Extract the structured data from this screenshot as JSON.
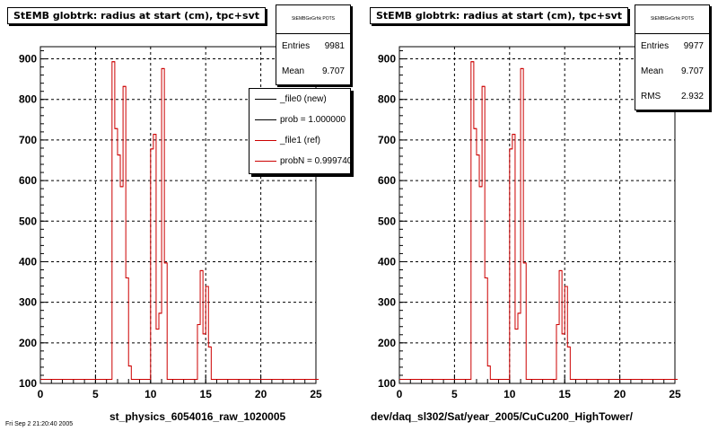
{
  "footer": {
    "timestamp": "Fri Sep  2 21:20:40 2005"
  },
  "legend": {
    "entries": [
      {
        "label": "_file0 (new)",
        "color": "#000000"
      },
      {
        "label": "prob = 1.000000",
        "color": "#000000"
      },
      {
        "label": "_file1 (ref)",
        "color": "#cc0000"
      },
      {
        "label": "probN = 0.999740",
        "color": "#cc0000"
      }
    ]
  },
  "colors": {
    "hist": "#cc0000",
    "grid": "#000000",
    "background": "#ffffff"
  },
  "chart_data": [
    {
      "type": "bar",
      "title": "StEMB globtrk: radius at start (cm), tpc+svt",
      "xlabel": "st_physics_6054016_raw_1020005",
      "ylabel": "",
      "xlim": [
        0,
        25
      ],
      "ylim": [
        100,
        930
      ],
      "xticks": [
        "0",
        "5",
        "10",
        "15",
        "20",
        "25"
      ],
      "yticks": [
        "100",
        "200",
        "300",
        "400",
        "500",
        "600",
        "700",
        "800",
        "900"
      ],
      "grid": true,
      "stats": {
        "name": "StEMBGeGrhk POTS",
        "entries_label": "Entries",
        "entries": "9981",
        "mean_label": "Mean",
        "mean": "9.707"
      },
      "bin_width": 0.25,
      "bins": [
        {
          "x": 0.0,
          "y": 110
        },
        {
          "x": 6.25,
          "y": 110
        },
        {
          "x": 6.5,
          "y": 893
        },
        {
          "x": 6.75,
          "y": 728
        },
        {
          "x": 7.0,
          "y": 663
        },
        {
          "x": 7.25,
          "y": 585
        },
        {
          "x": 7.5,
          "y": 832
        },
        {
          "x": 7.75,
          "y": 360
        },
        {
          "x": 8.0,
          "y": 143
        },
        {
          "x": 8.25,
          "y": 110
        },
        {
          "x": 10.0,
          "y": 678
        },
        {
          "x": 10.25,
          "y": 714
        },
        {
          "x": 10.5,
          "y": 234
        },
        {
          "x": 10.75,
          "y": 273
        },
        {
          "x": 11.0,
          "y": 876
        },
        {
          "x": 11.25,
          "y": 397
        },
        {
          "x": 11.5,
          "y": 110
        },
        {
          "x": 14.25,
          "y": 245
        },
        {
          "x": 14.5,
          "y": 378
        },
        {
          "x": 14.75,
          "y": 222
        },
        {
          "x": 15.0,
          "y": 339
        },
        {
          "x": 15.25,
          "y": 190
        },
        {
          "x": 15.5,
          "y": 110
        },
        {
          "x": 25.0,
          "y": 110
        }
      ]
    },
    {
      "type": "bar",
      "title": "StEMB globtrk: radius at start (cm), tpc+svt",
      "xlabel": "dev/daq_sl302/Sat/year_2005/CuCu200_HighTower/",
      "ylabel": "",
      "xlim": [
        0,
        25
      ],
      "ylim": [
        100,
        930
      ],
      "xticks": [
        "0",
        "5",
        "10",
        "15",
        "20",
        "25"
      ],
      "yticks": [
        "100",
        "200",
        "300",
        "400",
        "500",
        "600",
        "700",
        "800",
        "900"
      ],
      "grid": true,
      "stats": {
        "name": "StEMBGeGrhk POTS",
        "entries_label": "Entries",
        "entries": "9977",
        "mean_label": "Mean",
        "mean": "9.707",
        "rms_label": "RMS",
        "rms": "2.932"
      },
      "bin_width": 0.25,
      "bins": [
        {
          "x": 0.0,
          "y": 110
        },
        {
          "x": 6.25,
          "y": 110
        },
        {
          "x": 6.5,
          "y": 893
        },
        {
          "x": 6.75,
          "y": 728
        },
        {
          "x": 7.0,
          "y": 663
        },
        {
          "x": 7.25,
          "y": 585
        },
        {
          "x": 7.5,
          "y": 832
        },
        {
          "x": 7.75,
          "y": 360
        },
        {
          "x": 8.0,
          "y": 143
        },
        {
          "x": 8.25,
          "y": 110
        },
        {
          "x": 10.0,
          "y": 678
        },
        {
          "x": 10.25,
          "y": 714
        },
        {
          "x": 10.5,
          "y": 234
        },
        {
          "x": 10.75,
          "y": 273
        },
        {
          "x": 11.0,
          "y": 876
        },
        {
          "x": 11.25,
          "y": 397
        },
        {
          "x": 11.5,
          "y": 110
        },
        {
          "x": 14.25,
          "y": 245
        },
        {
          "x": 14.5,
          "y": 378
        },
        {
          "x": 14.75,
          "y": 222
        },
        {
          "x": 15.0,
          "y": 339
        },
        {
          "x": 15.25,
          "y": 190
        },
        {
          "x": 15.5,
          "y": 110
        },
        {
          "x": 25.0,
          "y": 110
        }
      ]
    }
  ]
}
